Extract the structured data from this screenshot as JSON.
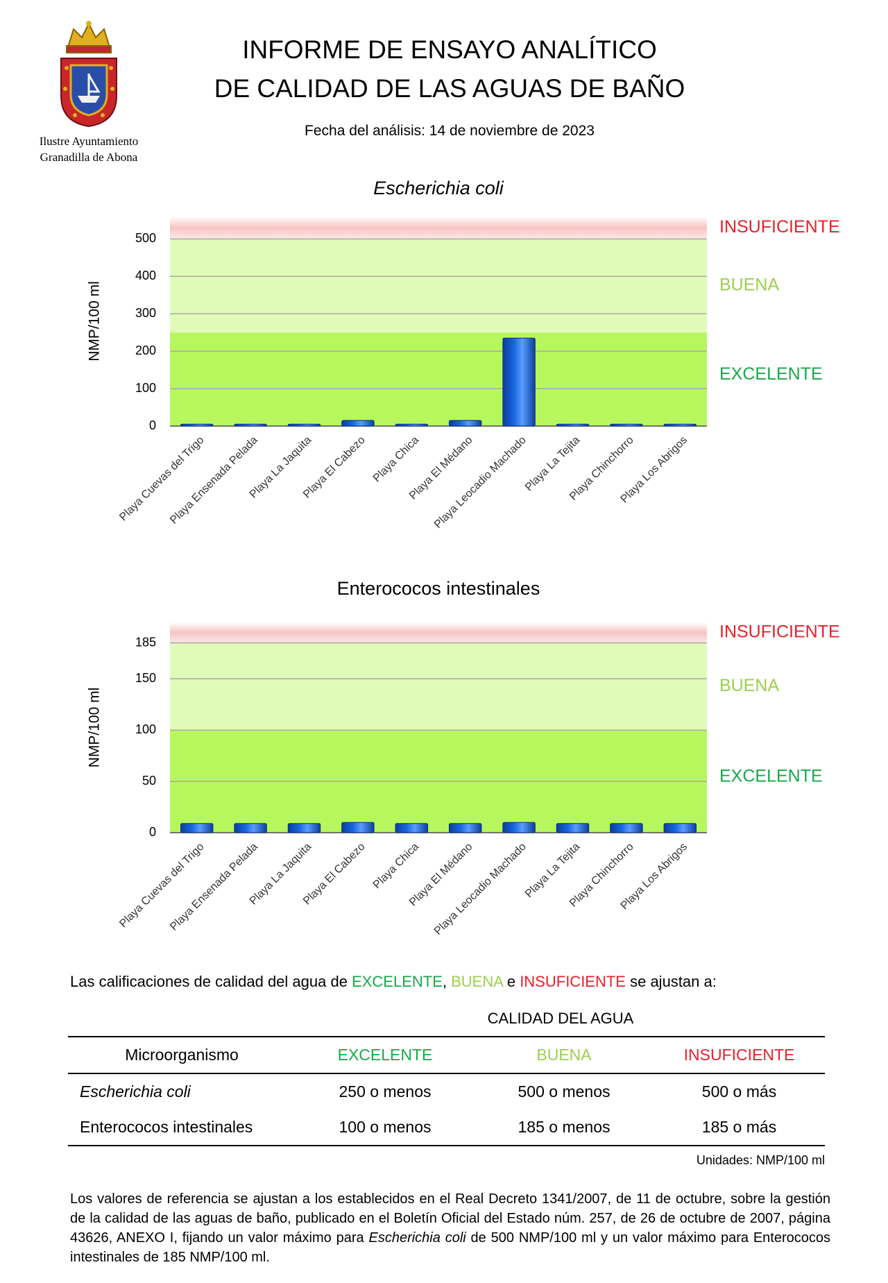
{
  "header": {
    "logo_text": [
      "Ilustre Ayuntamiento",
      "Granadilla de Abona"
    ],
    "title": [
      "INFORME DE ENSAYO ANALÍTICO",
      "DE CALIDAD DE LAS AGUAS DE BAÑO"
    ],
    "date": "Fecha del análisis: 14 de noviembre de 2023"
  },
  "chart_data": [
    {
      "type": "bar",
      "title": "Escherichia coli",
      "title_italic": true,
      "y_label": "NMP/100 ml",
      "categories": [
        "Playa Cuevas del Trigo",
        "Playa Ensenada Pelada",
        "Playa La Jaquita",
        "Playa El Cabezo",
        "Playa Chica",
        "Playa El Médano",
        "Playa Leocadio Machado",
        "Playa La Tejita",
        "Playa Chinchorro",
        "Playa Los Abrigos"
      ],
      "values": [
        5,
        5,
        5,
        15,
        5,
        15,
        235,
        5,
        5,
        5
      ],
      "color": "#1a66e0",
      "ylim": [
        0,
        560
      ],
      "yticks": [
        0,
        100,
        200,
        300,
        400,
        500
      ],
      "grid": true,
      "bands": [
        {
          "label": "EXCELENTE",
          "from": 0,
          "to": 250,
          "color": "#b7f75e",
          "label_color": "#17a84a"
        },
        {
          "label": "BUENA",
          "from": 250,
          "to": 500,
          "color": "#e0fbb8",
          "label_color": "#9bcf4e"
        },
        {
          "label": "INSUFICIENTE",
          "from": 500,
          "to": 560,
          "color": "#f7c4c4",
          "label_color": "#e8202a"
        }
      ]
    },
    {
      "type": "bar",
      "title": "Enterococos intestinales",
      "title_italic": false,
      "y_label": "NMP/100 ml",
      "categories": [
        "Playa Cuevas del Trigo",
        "Playa Ensenada Pelada",
        "Playa La Jaquita",
        "Playa El Cabezo",
        "Playa Chica",
        "Playa El Médano",
        "Playa Leocadio Machado",
        "Playa La Tejita",
        "Playa Chinchorro",
        "Playa Los Abrigos"
      ],
      "values": [
        9,
        9,
        9,
        10,
        9,
        9,
        10,
        9,
        9,
        9
      ],
      "color": "#1a66e0",
      "ylim": [
        0,
        205
      ],
      "yticks": [
        0,
        50,
        100,
        150,
        185
      ],
      "grid": true,
      "bands": [
        {
          "label": "EXCELENTE",
          "from": 0,
          "to": 100,
          "color": "#b7f75e",
          "label_color": "#17a84a"
        },
        {
          "label": "BUENA",
          "from": 100,
          "to": 185,
          "color": "#e0fbb8",
          "label_color": "#9bcf4e"
        },
        {
          "label": "INSUFICIENTE",
          "from": 185,
          "to": 205,
          "color": "#f7c4c4",
          "label_color": "#e8202a"
        }
      ]
    }
  ],
  "legend": {
    "parts": [
      {
        "text": "Las calificaciones de calidad del agua de "
      },
      {
        "text": "EXCELENTE",
        "color": "#17a84a"
      },
      {
        "text": ", "
      },
      {
        "text": "BUENA",
        "color": "#9bcf4e"
      },
      {
        "text": " e "
      },
      {
        "text": "INSUFICIENTE",
        "color": "#e8202a"
      },
      {
        "text": " se ajustan a:"
      }
    ]
  },
  "table": {
    "group_header": "CALIDAD DEL AGUA",
    "columns": [
      {
        "text": "Microorganismo"
      },
      {
        "text": "EXCELENTE",
        "color": "#17a84a"
      },
      {
        "text": "BUENA",
        "color": "#9bcf4e"
      },
      {
        "text": "INSUFICIENTE",
        "color": "#e8202a"
      }
    ],
    "rows": [
      [
        "Escherichia coli",
        "250 o menos",
        "500 o menos",
        "500 o más"
      ],
      [
        "Enterococos intestinales",
        "100 o menos",
        "185 o menos",
        "185 o más"
      ]
    ],
    "units": "Unidades: NMP/100 ml"
  },
  "footnote": {
    "parts": [
      {
        "text": "Los valores de referencia se ajustan a los establecidos en el Real Decreto 1341/2007, de 11 de octubre, sobre la gestión de la calidad de las aguas de baño, publicado en el Boletín Oficial del Estado núm. 257, de 26 de octubre de 2007, página 43626, ANEXO I, fijando un valor máximo para ",
        "italic": false
      },
      {
        "text": "Escherichia coli",
        "italic": true
      },
      {
        "text": " de 500 NMP/100 ml y un valor máximo para Enterococos intestinales de 185 NMP/100 ml.",
        "italic": false
      }
    ]
  }
}
